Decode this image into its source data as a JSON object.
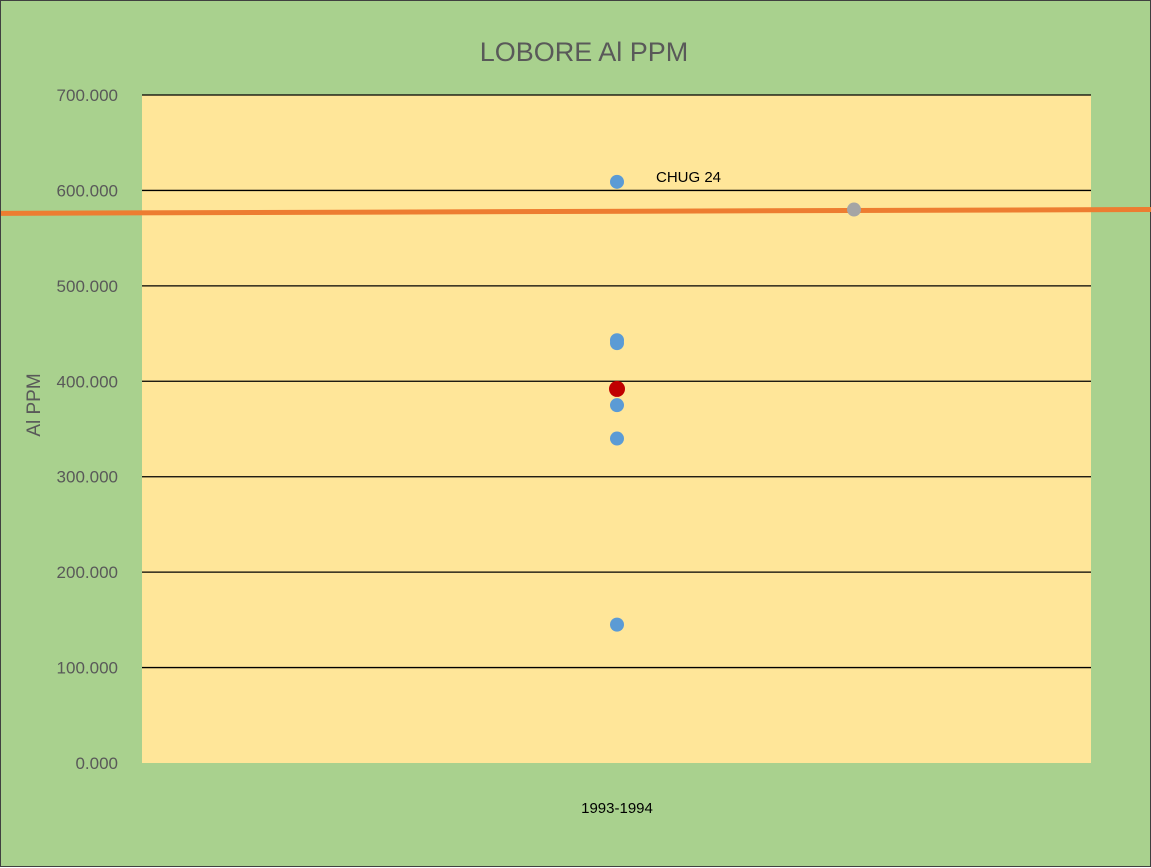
{
  "chart_data": {
    "type": "scatter",
    "title": "LOBORE Al PPM",
    "xlabel": "",
    "ylabel": "Al PPM",
    "category_label": "1993-1994",
    "ylim": [
      0,
      700
    ],
    "yticks": [
      "0.000",
      "100.000",
      "200.000",
      "300.000",
      "400.000",
      "500.000",
      "600.000",
      "700.000"
    ],
    "grid": true,
    "legend": "none",
    "colors": {
      "background": "#a9d18e",
      "plot_area": "#ffe699",
      "gridline": "#000000",
      "series_blue": "#5b9bd5",
      "series_red": "#c00000",
      "series_grey": "#a5a5a5",
      "reference_line": "#ed7d31"
    },
    "series": [
      {
        "x": [
          1,
          1,
          1,
          1,
          1,
          1
        ],
        "values": [
          609,
          443,
          440,
          375,
          340,
          145
        ],
        "labels": [
          "CHUG 24",
          "",
          "",
          "",
          "",
          ""
        ],
        "color": "#5b9bd5"
      },
      {
        "x": [
          1
        ],
        "values": [
          392
        ],
        "color": "#c00000"
      },
      {
        "x": [
          2
        ],
        "values": [
          580
        ],
        "color": "#a5a5a5"
      },
      {
        "type": "line",
        "x": [
          0,
          2.5
        ],
        "values": [
          576,
          580
        ],
        "color": "#ed7d31"
      }
    ]
  }
}
